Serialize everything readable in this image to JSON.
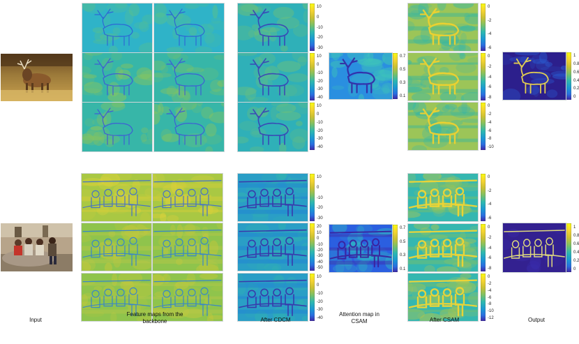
{
  "labels": {
    "input": "Input",
    "feature_maps": "Feature maps from the backbone",
    "after_cdcm": "After CDCM",
    "attention": "Attention map in CSAM",
    "after_csam": "After CSAM",
    "output": "Output"
  },
  "colorbars": {
    "cdcm_top_1": [
      "10",
      "0",
      "-10",
      "-20",
      "-30"
    ],
    "cdcm_top_2": [
      "10",
      "0",
      "-10",
      "-20",
      "-30",
      "-40"
    ],
    "cdcm_top_3": [
      "10",
      "0",
      "-10",
      "-20",
      "-30",
      "-40"
    ],
    "attn_top": [
      "0.7",
      "0.5",
      "0.3",
      "0.1"
    ],
    "csam_top_1": [
      "0",
      "-2",
      "-4",
      "-6"
    ],
    "csam_top_2": [
      "0",
      "-2",
      "-4",
      "-6",
      "-8"
    ],
    "csam_top_3": [
      "0",
      "-2",
      "-4",
      "-6",
      "-8",
      "-10"
    ],
    "out_top": [
      "1",
      "0.8",
      "0.6",
      "0.4",
      "0.2",
      "0"
    ],
    "cdcm_bot_1": [
      "10",
      "0",
      "-10",
      "-20",
      "-30"
    ],
    "cdcm_bot_2": [
      "20",
      "10",
      "0",
      "-10",
      "-20",
      "-30",
      "-40",
      "-50"
    ],
    "cdcm_bot_3": [
      "10",
      "0",
      "-10",
      "-20",
      "-30",
      "-40"
    ],
    "attn_bot": [
      "0.7",
      "0.5",
      "0.3",
      "0.1"
    ],
    "csam_bot_1": [
      "0",
      "-2",
      "-4",
      "-6"
    ],
    "csam_bot_2": [
      "0",
      "-2",
      "-4",
      "-6",
      "-8"
    ],
    "csam_bot_3": [
      "0",
      "-2",
      "-4",
      "-6",
      "-8",
      "-10",
      "-12"
    ],
    "out_bot": [
      "1",
      "0.8",
      "0.6",
      "0.4",
      "0.2",
      "0"
    ]
  },
  "colors": {
    "parula_top": "#f9fb0e",
    "parula_mid": "#2db8b0",
    "parula_low": "#3e26a8",
    "teal_bg": "#1fa6c9"
  }
}
